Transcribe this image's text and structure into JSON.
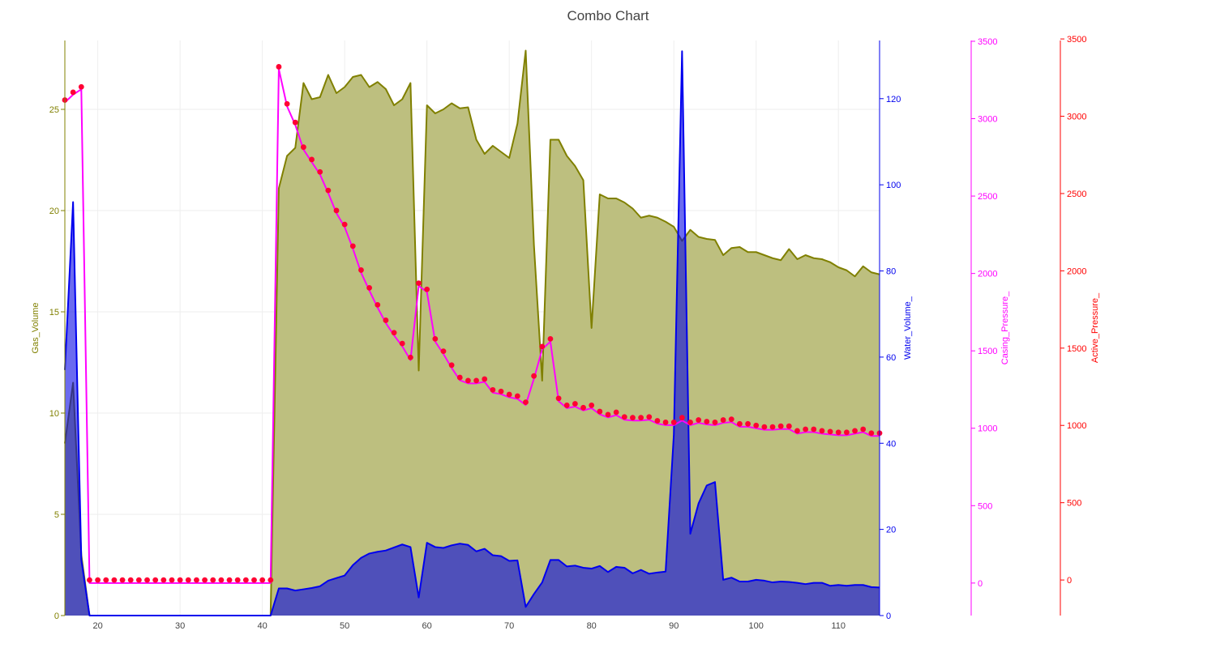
{
  "chart_data": {
    "type": "area",
    "title": "Combo Chart",
    "xlim": [
      16,
      115
    ],
    "x_ticks": [
      20,
      30,
      40,
      50,
      60,
      70,
      80,
      90,
      100,
      110
    ],
    "grid": true,
    "colors": {
      "gas": "#808000",
      "gas_fill": "#bdbf7f",
      "water": "#0000ee",
      "water_fill": "rgba(0,0,230,0.58)",
      "casing": "#ff00ff",
      "active": "#ff0000",
      "markers": "#ff0033"
    },
    "axes": {
      "gas": {
        "title": "Gas_Volume",
        "range": [
          0,
          28.4
        ],
        "ticks": [
          0,
          5,
          10,
          15,
          20,
          25
        ]
      },
      "water": {
        "title": "Water_Volume_",
        "range": [
          0,
          133.5
        ],
        "ticks": [
          0,
          20,
          40,
          60,
          80,
          100,
          120
        ]
      },
      "casing": {
        "title": "Casing_Pressure_",
        "range": [
          -210,
          3505
        ],
        "ticks": [
          0,
          500,
          1000,
          1500,
          2000,
          2500,
          3000,
          3500
        ]
      },
      "active": {
        "title": "Active_Pressure_",
        "range": [
          -230,
          3490
        ],
        "ticks": [
          0,
          500,
          1000,
          1500,
          2000,
          2500,
          3000,
          3500
        ]
      }
    },
    "x": [
      16,
      17,
      18,
      19,
      20,
      21,
      22,
      23,
      24,
      25,
      26,
      27,
      28,
      29,
      30,
      31,
      32,
      33,
      34,
      35,
      36,
      37,
      38,
      39,
      40,
      41,
      42,
      43,
      44,
      45,
      46,
      47,
      48,
      49,
      50,
      51,
      52,
      53,
      54,
      55,
      56,
      57,
      58,
      59,
      60,
      61,
      62,
      63,
      64,
      65,
      66,
      67,
      68,
      69,
      70,
      71,
      72,
      73,
      74,
      75,
      76,
      77,
      78,
      79,
      80,
      81,
      82,
      83,
      84,
      85,
      86,
      87,
      88,
      89,
      90,
      91,
      92,
      93,
      94,
      95,
      96,
      97,
      98,
      99,
      100,
      101,
      102,
      103,
      104,
      105,
      106,
      107,
      108,
      109,
      110,
      111,
      112,
      113,
      114,
      115
    ],
    "series": [
      {
        "name": "Gas_Volume",
        "axis": "gas",
        "style": "area",
        "values": [
          8.5,
          11.5,
          3,
          0,
          0,
          0,
          0,
          0,
          0,
          0,
          0,
          0,
          0,
          0,
          0,
          0,
          0,
          0,
          0,
          0,
          0,
          0,
          0,
          0,
          0,
          0,
          21.1,
          22.7,
          23.1,
          26.3,
          25.5,
          25.6,
          26.7,
          25.8,
          26.1,
          26.6,
          26.7,
          26.1,
          26.35,
          26.0,
          25.2,
          25.5,
          26.3,
          12.1,
          25.2,
          24.8,
          25.0,
          25.3,
          25.05,
          25.1,
          23.5,
          22.8,
          23.2,
          22.9,
          22.6,
          24.3,
          27.9,
          18.3,
          11.6,
          23.5,
          23.5,
          22.7,
          22.2,
          21.5,
          14.2,
          20.8,
          20.6,
          20.6,
          20.4,
          20.1,
          19.65,
          19.75,
          19.65,
          19.45,
          19.2,
          18.5,
          19.05,
          18.7,
          18.6,
          18.55,
          17.8,
          18.15,
          18.2,
          17.95,
          17.95,
          17.8,
          17.65,
          17.55,
          18.1,
          17.6,
          17.8,
          17.65,
          17.6,
          17.45,
          17.2,
          17.05,
          16.75,
          17.25,
          16.95,
          16.85
        ]
      },
      {
        "name": "Water_Volume_",
        "axis": "water",
        "style": "area",
        "values": [
          57,
          96,
          13,
          0,
          0,
          0,
          0,
          0,
          0,
          0,
          0,
          0,
          0,
          0,
          0,
          0,
          0,
          0,
          0,
          0,
          0,
          0,
          0,
          0,
          0,
          0,
          6.3,
          6.3,
          5.8,
          6.1,
          6.4,
          6.8,
          8.1,
          8.7,
          9.3,
          11.7,
          13.4,
          14.4,
          14.8,
          15.1,
          15.8,
          16.5,
          15.9,
          4.2,
          16.9,
          15.9,
          15.7,
          16.3,
          16.7,
          16.4,
          14.9,
          15.5,
          14.0,
          13.8,
          12.7,
          12.8,
          2.0,
          5.0,
          7.7,
          12.9,
          12.9,
          11.4,
          11.6,
          11.1,
          10.9,
          11.5,
          10.1,
          11.3,
          11.1,
          9.8,
          10.6,
          9.7,
          10.0,
          10.2,
          42,
          131,
          19,
          26,
          30.2,
          31,
          8.3,
          8.8,
          7.9,
          7.9,
          8.3,
          8.1,
          7.7,
          7.9,
          7.8,
          7.6,
          7.3,
          7.6,
          7.6,
          6.9,
          7.1,
          6.9,
          7.1,
          7.1,
          6.6,
          6.5
        ]
      },
      {
        "name": "Casing_Pressure_",
        "axis": "casing",
        "style": "line",
        "values": [
          3105,
          3155,
          3190,
          0,
          0,
          0,
          0,
          0,
          0,
          0,
          0,
          0,
          0,
          0,
          0,
          0,
          0,
          0,
          0,
          0,
          0,
          0,
          0,
          0,
          0,
          0,
          3320,
          3080,
          2960,
          2800,
          2720,
          2640,
          2520,
          2390,
          2300,
          2160,
          2005,
          1890,
          1780,
          1680,
          1600,
          1530,
          1440,
          1920,
          1880,
          1560,
          1480,
          1390,
          1310,
          1290,
          1290,
          1300,
          1230,
          1220,
          1200,
          1190,
          1150,
          1320,
          1510,
          1560,
          1175,
          1130,
          1140,
          1115,
          1130,
          1090,
          1070,
          1085,
          1055,
          1050,
          1050,
          1055,
          1030,
          1020,
          1020,
          1050,
          1020,
          1035,
          1025,
          1020,
          1035,
          1040,
          1010,
          1010,
          1000,
          990,
          990,
          995,
          995,
          965,
          975,
          975,
          965,
          960,
          955,
          955,
          965,
          975,
          950,
          950
        ]
      },
      {
        "name": "Active_Pressure_",
        "axis": "active",
        "style": "markers",
        "values": [
          3105,
          3155,
          3190,
          0,
          0,
          0,
          0,
          0,
          0,
          0,
          0,
          0,
          0,
          0,
          0,
          0,
          0,
          0,
          0,
          0,
          0,
          0,
          0,
          0,
          0,
          0,
          3320,
          3080,
          2960,
          2800,
          2720,
          2640,
          2520,
          2390,
          2300,
          2160,
          2005,
          1890,
          1780,
          1680,
          1600,
          1530,
          1440,
          1920,
          1880,
          1560,
          1480,
          1390,
          1310,
          1290,
          1290,
          1300,
          1230,
          1220,
          1200,
          1190,
          1150,
          1320,
          1510,
          1560,
          1175,
          1130,
          1140,
          1115,
          1130,
          1090,
          1070,
          1085,
          1055,
          1050,
          1050,
          1055,
          1030,
          1020,
          1020,
          1050,
          1020,
          1035,
          1025,
          1020,
          1035,
          1040,
          1010,
          1010,
          1000,
          990,
          990,
          995,
          995,
          965,
          975,
          975,
          965,
          960,
          955,
          955,
          965,
          975,
          950,
          950
        ]
      }
    ]
  }
}
